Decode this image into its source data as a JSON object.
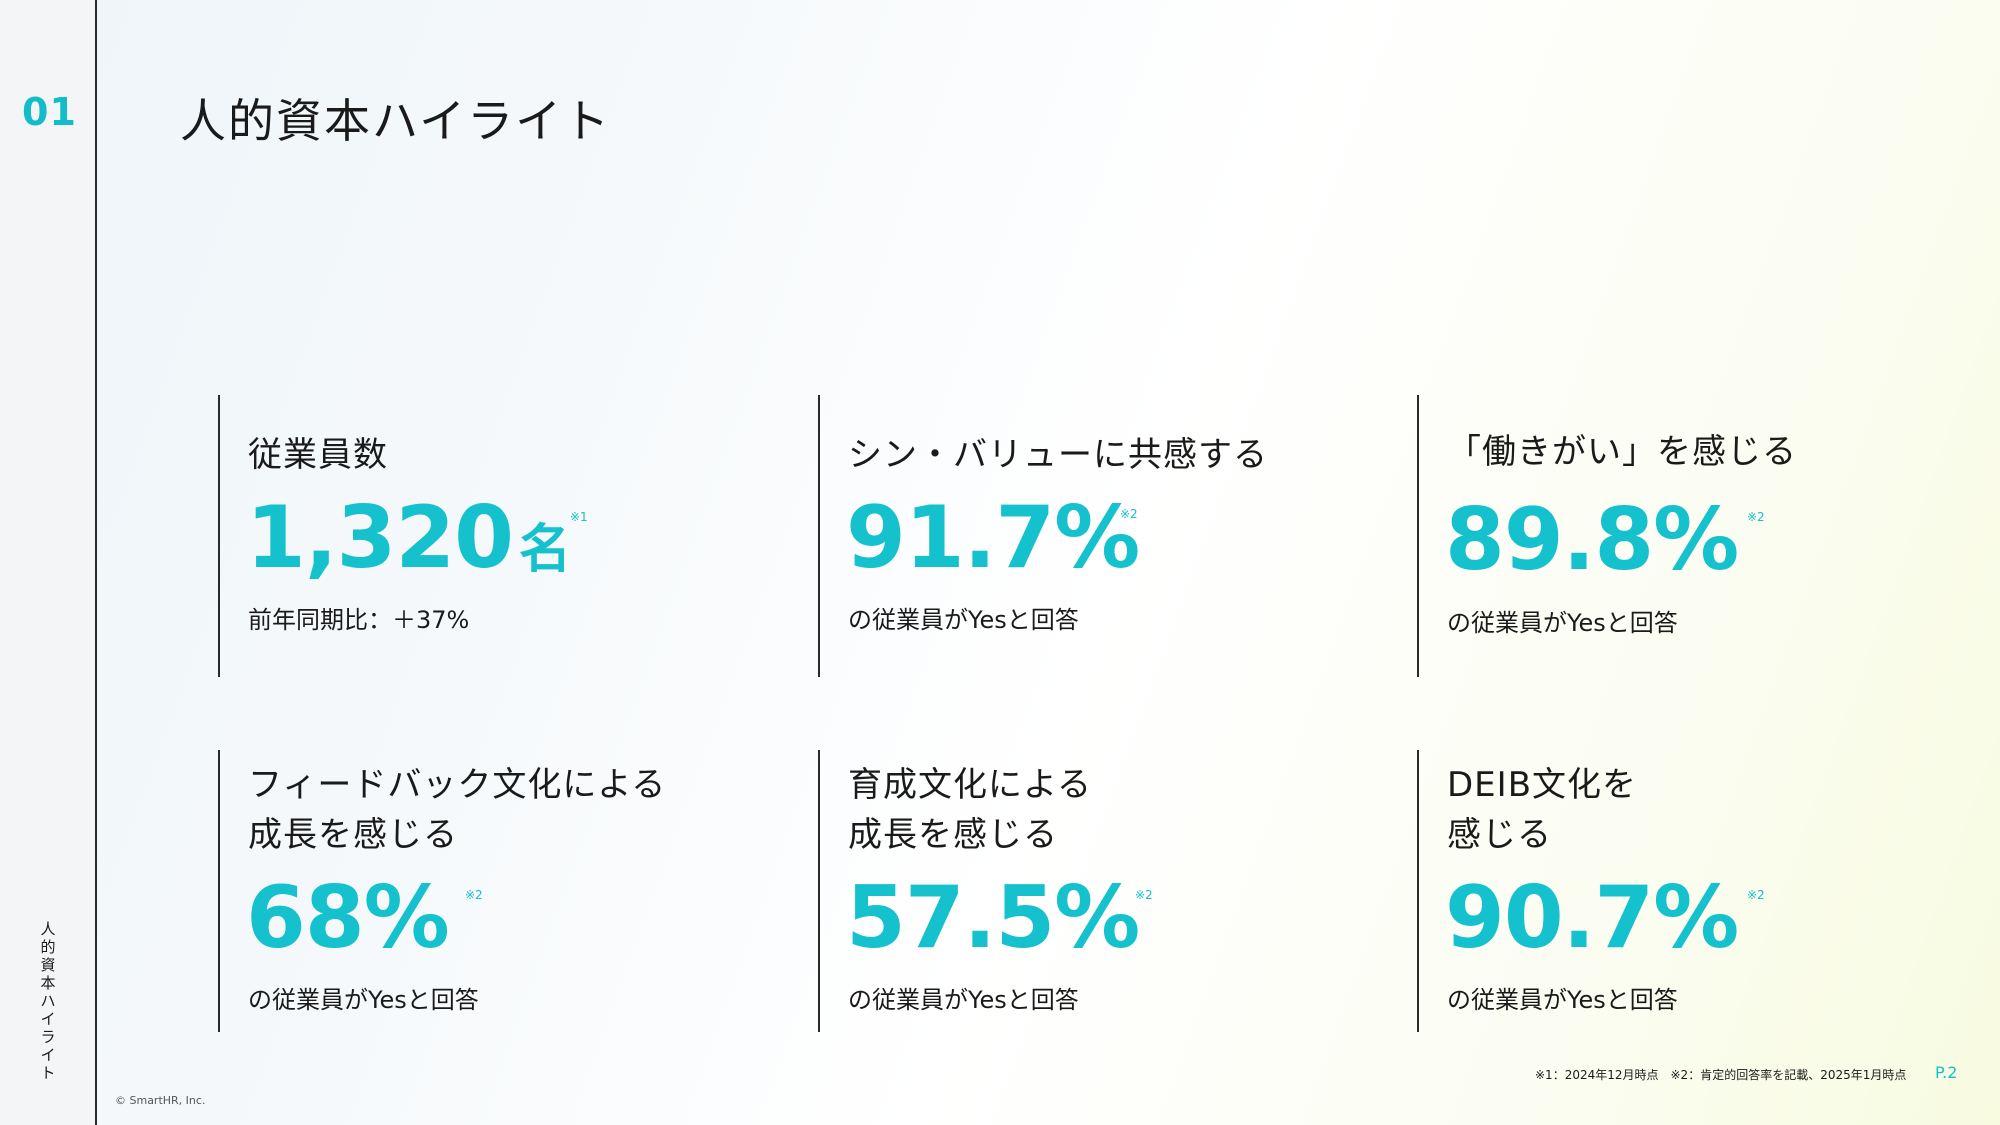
{
  "section": {
    "number": "01",
    "vertical_label": "人的資本ハイライト"
  },
  "title": "人的資本ハイライト",
  "cards": [
    {
      "label": "従業員数",
      "value": "1,320",
      "unit": "名",
      "note": "※1",
      "sub": "前年同期比：＋37%"
    },
    {
      "label": "シン・バリューに共感する",
      "value": "91.7%",
      "unit": "",
      "note": "※2",
      "sub": "の従業員がYesと回答"
    },
    {
      "label": "「働きがい」を感じる",
      "value": "89.8%",
      "unit": "",
      "note": "※2",
      "sub": "の従業員がYesと回答"
    },
    {
      "label_line1": "フィードバック文化による",
      "label_line2": "成長を感じる",
      "value": "68%",
      "unit": "",
      "note": "※2",
      "sub": "の従業員がYesと回答"
    },
    {
      "label_line1": "育成文化による",
      "label_line2": "成長を感じる",
      "value": "57.5%",
      "unit": "",
      "note": "※2",
      "sub": "の従業員がYesと回答"
    },
    {
      "label_line1": "DEIB文化を",
      "label_line2": "感じる",
      "value": "90.7%",
      "unit": "",
      "note": "※2",
      "sub": "の従業員がYesと回答"
    }
  ],
  "footer": {
    "footnote": "※1：2024年12月時点　※2：肯定的回答率を記載、2025年1月時点",
    "page": "P.2",
    "copyright": "© SmartHR, Inc."
  },
  "colors": {
    "accent": "#14c1cc",
    "text": "#1a1a1a"
  }
}
